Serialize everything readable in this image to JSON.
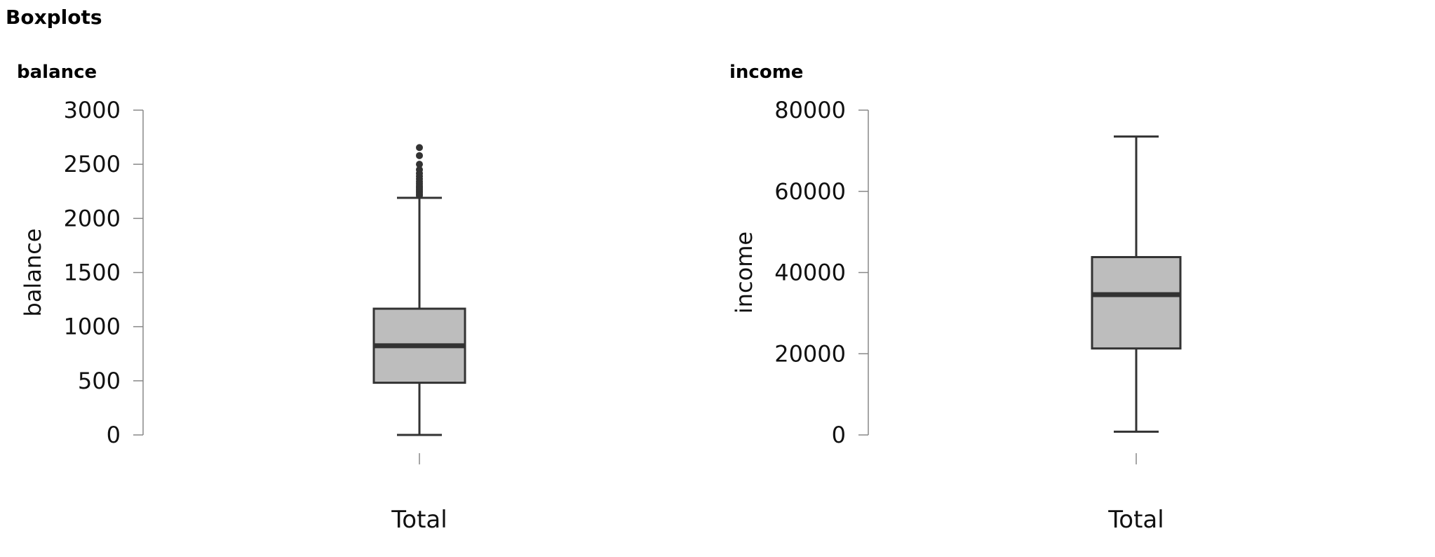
{
  "page": {
    "title": "Boxplots"
  },
  "chart_data": [
    {
      "type": "boxplot",
      "panel_title": "balance",
      "ylabel": "balance",
      "ylim": [
        0,
        3000
      ],
      "yticks": [
        "0",
        "500",
        "1000",
        "1500",
        "2000",
        "2500",
        "3000"
      ],
      "categories": [
        "Total"
      ],
      "box": {
        "min": 0,
        "q1": 482,
        "median": 824,
        "q3": 1166,
        "max": 2190
      },
      "outliers": [
        2210,
        2225,
        2240,
        2255,
        2270,
        2285,
        2300,
        2320,
        2340,
        2365,
        2390,
        2415,
        2450,
        2500,
        2580,
        2654
      ],
      "colors": {
        "box_fill": "#bdbdbd",
        "stroke": "#333333"
      }
    },
    {
      "type": "boxplot",
      "panel_title": "income",
      "ylabel": "income",
      "ylim": [
        0,
        80000
      ],
      "yticks": [
        "0",
        "20000",
        "40000",
        "60000",
        "80000"
      ],
      "categories": [
        "Total"
      ],
      "box": {
        "min": 800,
        "q1": 21300,
        "median": 34550,
        "q3": 43800,
        "max": 73500
      },
      "outliers": [],
      "colors": {
        "box_fill": "#bdbdbd",
        "stroke": "#333333"
      }
    }
  ]
}
